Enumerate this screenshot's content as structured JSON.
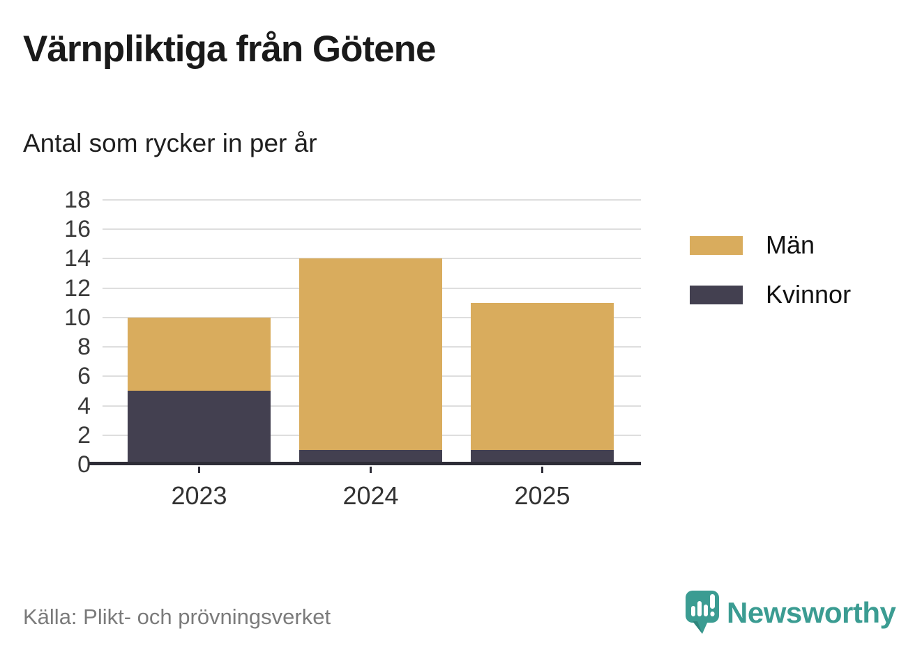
{
  "header": {
    "title": "Värnpliktiga från Götene",
    "subtitle": "Antal som rycker in per år"
  },
  "chart_data": {
    "type": "bar",
    "stacked": true,
    "title": "Värnpliktiga från Götene",
    "subtitle": "Antal som rycker in per år",
    "categories": [
      "2023",
      "2024",
      "2025"
    ],
    "series": [
      {
        "name": "Män",
        "color": "#d9ac5d",
        "values": [
          5,
          13,
          10
        ]
      },
      {
        "name": "Kvinnor",
        "color": "#434050",
        "values": [
          5,
          1,
          1
        ]
      }
    ],
    "stack_totals": [
      10,
      14,
      11
    ],
    "ylim": [
      0,
      18
    ],
    "yticks": [
      0,
      2,
      4,
      6,
      8,
      10,
      12,
      14,
      16,
      18
    ],
    "grid": true,
    "legend_position": "right"
  },
  "footer": {
    "source": "Källa: Plikt- och prövningsverket",
    "brand": "Newsworthy",
    "logo_icon": "newsworthy-speech-bubble-bar-chart-icon"
  },
  "colors": {
    "bar_men": "#d9ac5d",
    "bar_women": "#434050",
    "gridline": "#dedede",
    "axis": "#2e2d37",
    "brand_teal": "#3b9c92",
    "brand_teal_shadow": "#2e857c",
    "source_gray": "#7b7b7b",
    "text_dark": "#1a1a1a"
  }
}
